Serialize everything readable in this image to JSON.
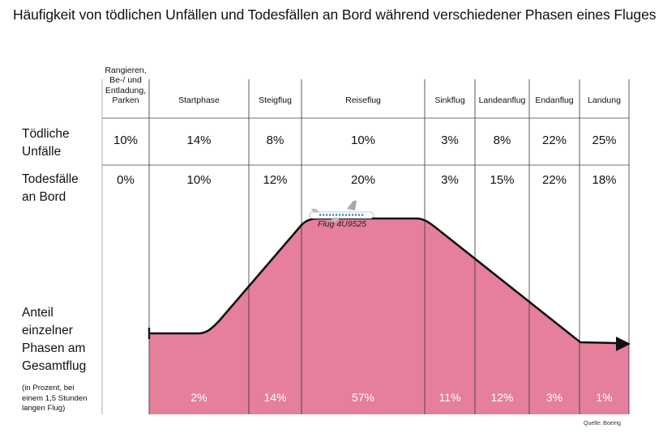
{
  "title": "Häufigkeit von tödlichen Unfällen und Todesfällen an Bord während verschiedener Phasen eines Fluges",
  "row_labels": {
    "fatal_line1": "Tödliche",
    "fatal_line2": "Unfälle",
    "onboard_line1": "Todesfälle",
    "onboard_line2": "an Bord",
    "share_line1": "Anteil",
    "share_line2": "einzelner",
    "share_line3": "Phasen am",
    "share_line4": "Gesamtflug",
    "share_note1": "(in Prozent, bei",
    "share_note2": "einem 1,5 Stunden",
    "share_note3": "langen Flug)"
  },
  "flight_label": "Flug 4U9525",
  "source": "Quelle: Boeing",
  "colors": {
    "area": "#e67f9c",
    "line": "#111111",
    "plane_body": "#ffffff",
    "plane_tail": "#aaaaaa",
    "plane_windows": "#3a78c2"
  },
  "chart_data": {
    "type": "table",
    "title": "Häufigkeit von tödlichen Unfällen und Todesfällen an Bord während verschiedener Phasen eines Fluges",
    "phases": [
      {
        "header": [
          "Rangieren,",
          "Be-/ und",
          "Entladung,",
          "Parken"
        ],
        "fatal_accidents": "10%",
        "onboard_deaths": "0%",
        "share_of_flight": ""
      },
      {
        "header": [
          "Startphase"
        ],
        "fatal_accidents": "14%",
        "onboard_deaths": "10%",
        "share_of_flight": "2%"
      },
      {
        "header": [
          "Steigflug"
        ],
        "fatal_accidents": "8%",
        "onboard_deaths": "12%",
        "share_of_flight": "14%"
      },
      {
        "header": [
          "Reiseflug"
        ],
        "fatal_accidents": "10%",
        "onboard_deaths": "20%",
        "share_of_flight": "57%"
      },
      {
        "header": [
          "Sinkflug"
        ],
        "fatal_accidents": "3%",
        "onboard_deaths": "3%",
        "share_of_flight": "11%"
      },
      {
        "header": [
          "Landeanflug"
        ],
        "fatal_accidents": "8%",
        "onboard_deaths": "15%",
        "share_of_flight": "12%"
      },
      {
        "header": [
          "Endanflug"
        ],
        "fatal_accidents": "22%",
        "onboard_deaths": "22%",
        "share_of_flight": "3%"
      },
      {
        "header": [
          "Landung"
        ],
        "fatal_accidents": "25%",
        "onboard_deaths": "18%",
        "share_of_flight": "1%"
      }
    ]
  }
}
